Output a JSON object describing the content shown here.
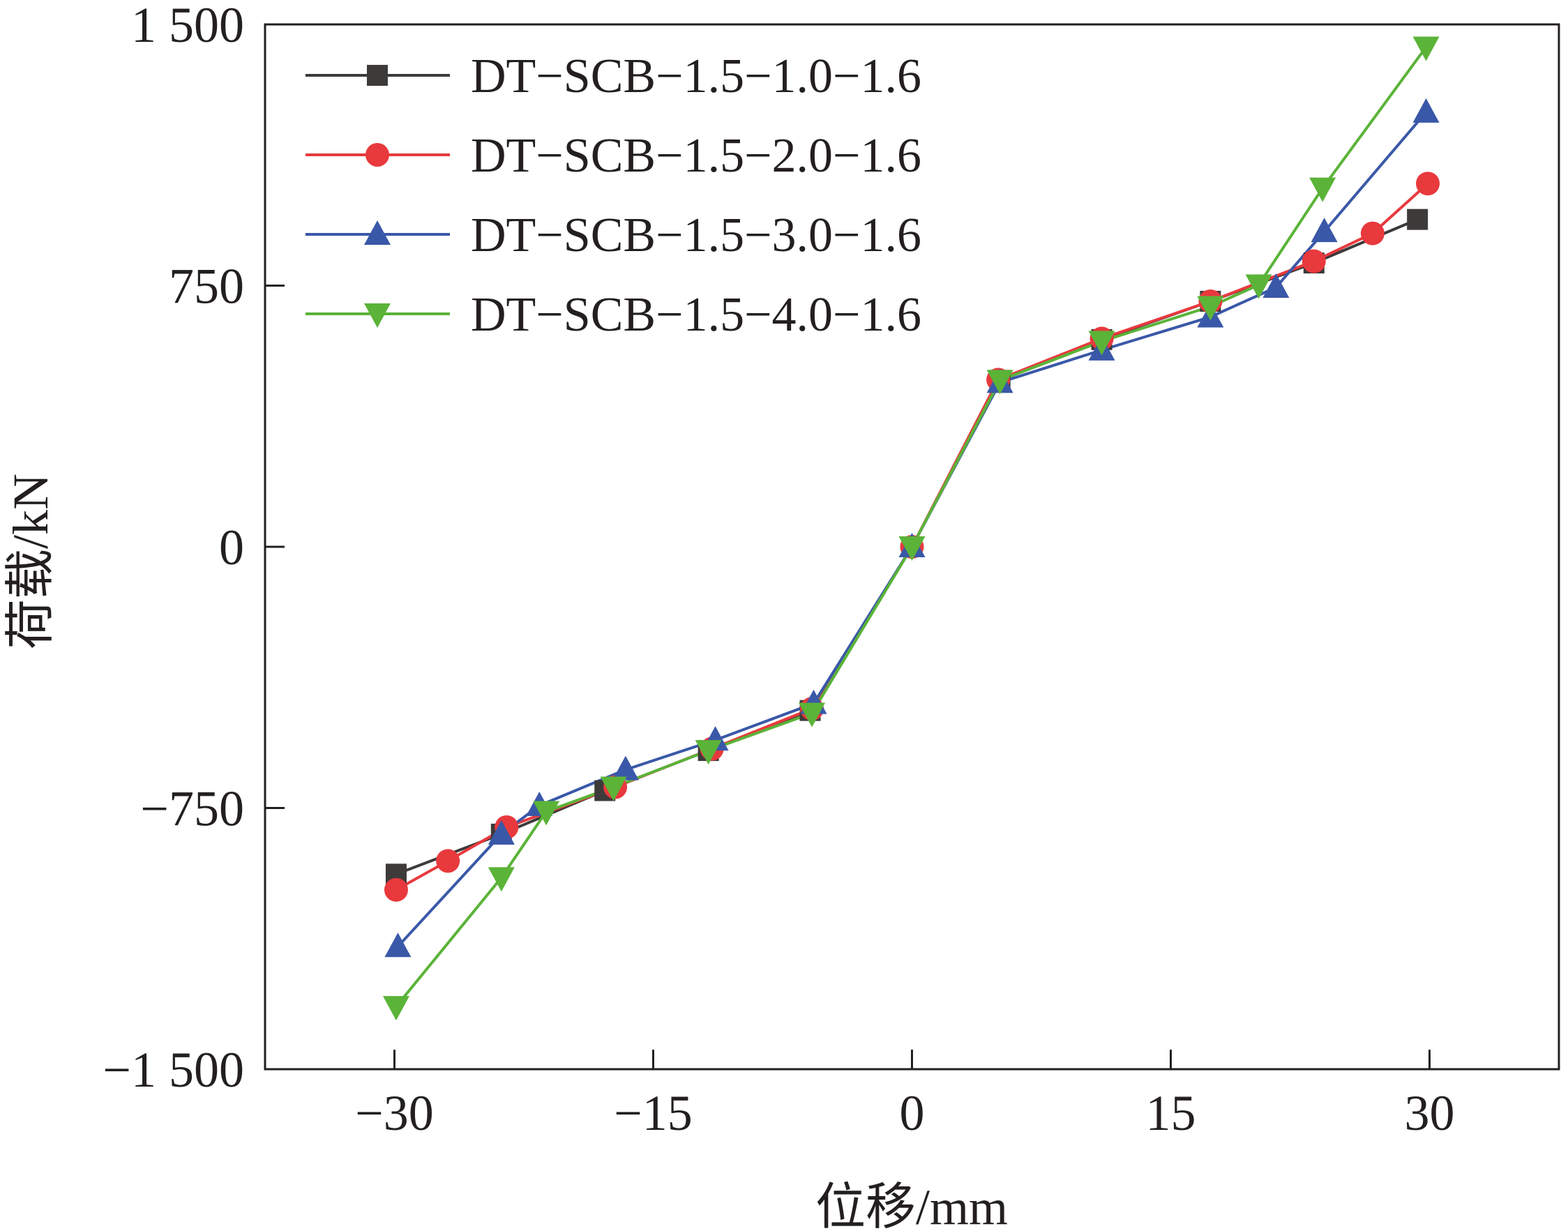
{
  "chart_data": {
    "type": "line",
    "xlabel": "位移/mm",
    "ylabel": "荷载/kN",
    "xlim": [
      -37.5,
      37.5
    ],
    "ylim": [
      -1500,
      1500
    ],
    "xticks": [
      -30,
      -15,
      0,
      15,
      30
    ],
    "yticks": [
      1500,
      750,
      0,
      -750,
      -1500
    ],
    "xtick_labels": [
      "−30",
      "−15",
      "0",
      "15",
      "30"
    ],
    "ytick_labels": [
      "1 500",
      "750",
      "0",
      "−750",
      "−1 500"
    ],
    "grid": false,
    "legend_position": "top-left",
    "series": [
      {
        "name": "DT−SCB−1.5−1.0−1.6",
        "color": "#3d3a3a",
        "marker": "square",
        "points": [
          [
            -29.9,
            -940
          ],
          [
            -23.8,
            -825
          ],
          [
            -17.8,
            -700
          ],
          [
            -11.8,
            -585
          ],
          [
            -5.9,
            -470
          ],
          [
            0,
            0
          ],
          [
            5.1,
            478
          ],
          [
            11.0,
            595
          ],
          [
            17.3,
            705
          ],
          [
            23.3,
            815
          ],
          [
            29.3,
            940
          ]
        ]
      },
      {
        "name": "DT−SCB−1.5−2.0−1.6",
        "color": "#e8393d",
        "marker": "circle",
        "points": [
          [
            -29.9,
            -985
          ],
          [
            -26.9,
            -902
          ],
          [
            -23.5,
            -805
          ],
          [
            -17.2,
            -690
          ],
          [
            -11.6,
            -580
          ],
          [
            -5.8,
            -465
          ],
          [
            0,
            0
          ],
          [
            5.0,
            480
          ],
          [
            11.0,
            598
          ],
          [
            17.3,
            705
          ],
          [
            23.3,
            820
          ],
          [
            26.7,
            900
          ],
          [
            29.9,
            1043
          ]
        ]
      },
      {
        "name": "DT−SCB−1.5−3.0−1.6",
        "color": "#3a58a8",
        "marker": "triangle-up",
        "points": [
          [
            -29.8,
            -1148
          ],
          [
            -23.8,
            -825
          ],
          [
            -21.6,
            -743
          ],
          [
            -16.6,
            -640
          ],
          [
            -11.4,
            -555
          ],
          [
            -5.7,
            -450
          ],
          [
            0,
            0
          ],
          [
            5.1,
            472
          ],
          [
            11.0,
            565
          ],
          [
            17.3,
            660
          ],
          [
            21.1,
            745
          ],
          [
            23.9,
            905
          ],
          [
            29.8,
            1248
          ]
        ]
      },
      {
        "name": "DT−SCB−1.5−4.0−1.6",
        "color": "#5bb338",
        "marker": "triangle-down",
        "points": [
          [
            -29.9,
            -1320
          ],
          [
            -23.8,
            -950
          ],
          [
            -21.2,
            -760
          ],
          [
            -17.3,
            -690
          ],
          [
            -11.8,
            -585
          ],
          [
            -5.8,
            -478
          ],
          [
            0,
            0
          ],
          [
            5.1,
            478
          ],
          [
            11.0,
            590
          ],
          [
            17.3,
            690
          ],
          [
            20.1,
            752
          ],
          [
            23.8,
            1030
          ],
          [
            29.8,
            1435
          ]
        ]
      }
    ]
  }
}
